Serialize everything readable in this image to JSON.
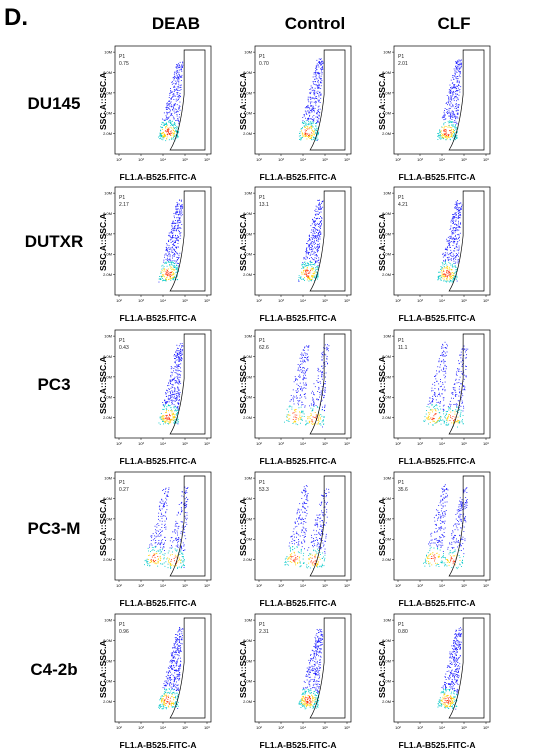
{
  "panel_label": "D.",
  "columns": [
    "DEAB",
    "Control",
    "CLF"
  ],
  "rows": [
    "DU145",
    "DUTXR",
    "PC3",
    "PC3-M",
    "C4-2b"
  ],
  "colors": {
    "low": "#1a1aff",
    "mid": "#00c8c8",
    "high": "#ffd000",
    "peak": "#ff2a00",
    "gate": "#000000"
  },
  "chart_data": {
    "type": "scatter",
    "subtype": "flow-cytometry-density-dot-plot",
    "xlabel": "FL1.A-B525.FITC-A",
    "ylabel": "SSC.A::SSC.A",
    "x_scale": "log",
    "x_ticks": [
      "10²",
      "10³",
      "10⁴",
      "10⁵",
      "10⁶"
    ],
    "y_ticks": [
      "2.0M",
      "4.0M",
      "6.0M",
      "8.0M",
      "10M"
    ],
    "gate_name": "P1",
    "panels": [
      {
        "row": "DU145",
        "column": "DEAB",
        "gate_value": "0.75"
      },
      {
        "row": "DU145",
        "column": "Control",
        "gate_value": "0.70"
      },
      {
        "row": "DU145",
        "column": "CLF",
        "gate_value": "2.01"
      },
      {
        "row": "DUTXR",
        "column": "DEAB",
        "gate_value": "2.17"
      },
      {
        "row": "DUTXR",
        "column": "Control",
        "gate_value": "13.1"
      },
      {
        "row": "DUTXR",
        "column": "CLF",
        "gate_value": "4.21"
      },
      {
        "row": "PC3",
        "column": "DEAB",
        "gate_value": "0.43"
      },
      {
        "row": "PC3",
        "column": "Control",
        "gate_value": "62.6"
      },
      {
        "row": "PC3",
        "column": "CLF",
        "gate_value": "11.1"
      },
      {
        "row": "PC3-M",
        "column": "DEAB",
        "gate_value": "0.27"
      },
      {
        "row": "PC3-M",
        "column": "Control",
        "gate_value": "53.3"
      },
      {
        "row": "PC3-M",
        "column": "CLF",
        "gate_value": "35.6"
      },
      {
        "row": "C4-2b",
        "column": "DEAB",
        "gate_value": "0.96"
      },
      {
        "row": "C4-2b",
        "column": "Control",
        "gate_value": "2.31"
      },
      {
        "row": "C4-2b",
        "column": "CLF",
        "gate_value": "0.80"
      }
    ]
  }
}
